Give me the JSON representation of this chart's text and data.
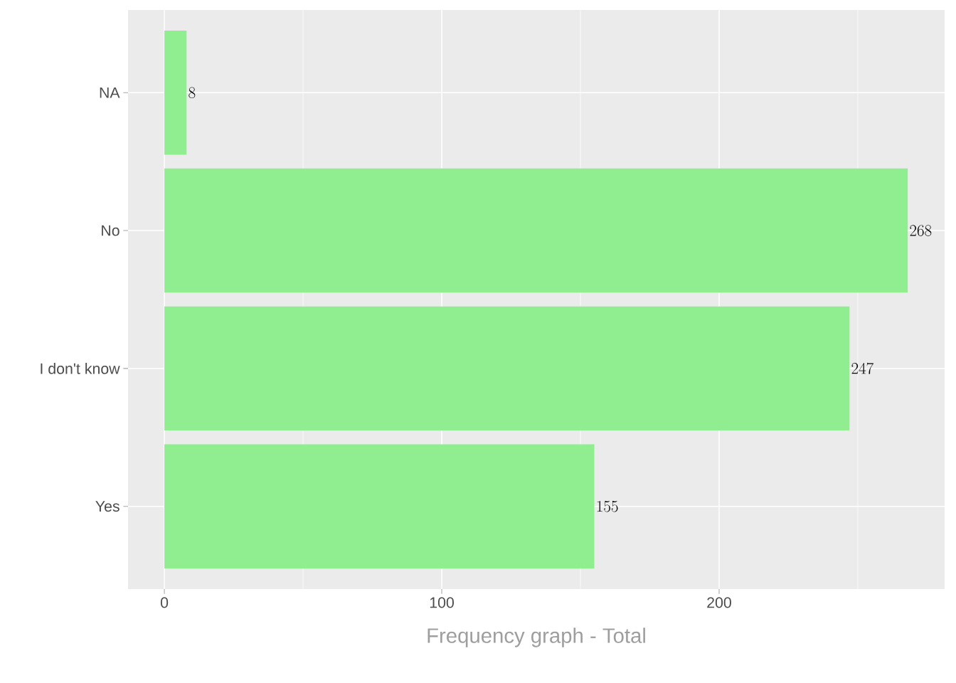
{
  "chart_data": {
    "type": "bar",
    "orientation": "horizontal",
    "xlabel": "Frequency graph - Total",
    "categories": [
      "NA",
      "No",
      "I don't know",
      "Yes"
    ],
    "values": [
      8,
      268,
      247,
      155
    ],
    "color": "#90ee90",
    "xlim": [
      -13.1,
      281.3
    ],
    "xticks": [
      0,
      100,
      200
    ],
    "grid": true,
    "data_labels": true
  }
}
